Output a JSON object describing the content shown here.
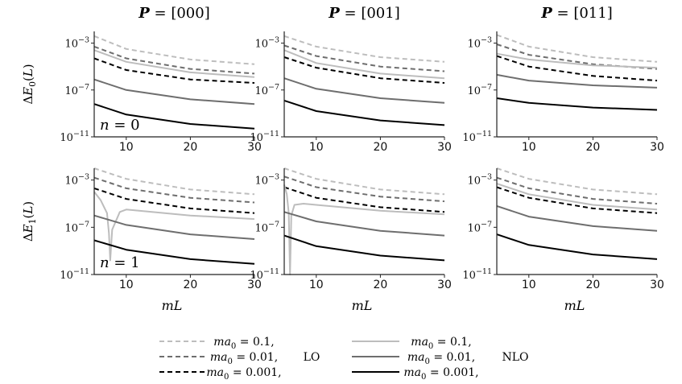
{
  "chart_data": {
    "type": "line",
    "layout": "2x3 grid",
    "xlabel": "mL",
    "xlim": [
      5,
      30
    ],
    "xticks": [
      10,
      20,
      30
    ],
    "ylim_log10": [
      -11,
      -2
    ],
    "yticks_log10": [
      -11,
      -7,
      -3
    ],
    "ytick_labels": [
      "10^{-11}",
      "10^{-7}",
      "10^{-3}"
    ],
    "columns": [
      {
        "title": "P = [000]"
      },
      {
        "title": "P = [001]"
      },
      {
        "title": "P = [011]"
      }
    ],
    "rows": [
      {
        "ylabel": "ΔE_0(L)",
        "annotation": "n = 0"
      },
      {
        "ylabel": "ΔE_1(L)",
        "annotation": "n = 1"
      }
    ],
    "series_styles": {
      "LO_0.1": {
        "color": "#bdbdbd",
        "dash": true
      },
      "LO_0.01": {
        "color": "#6e6e6e",
        "dash": true
      },
      "LO_0.001": {
        "color": "#000000",
        "dash": true
      },
      "NLO_0.1": {
        "color": "#bdbdbd",
        "dash": false
      },
      "NLO_0.01": {
        "color": "#6e6e6e",
        "dash": false
      },
      "NLO_0.001": {
        "color": "#000000",
        "dash": false
      }
    },
    "panels": [
      {
        "row": 0,
        "col": 0,
        "series": [
          {
            "key": "LO_0.1",
            "x": [
              5,
              10,
              20,
              30
            ],
            "log10y": [
              -2.4,
              -3.5,
              -4.4,
              -4.8
            ]
          },
          {
            "key": "LO_0.01",
            "x": [
              5,
              10,
              20,
              30
            ],
            "log10y": [
              -3.3,
              -4.3,
              -5.2,
              -5.6
            ]
          },
          {
            "key": "LO_0.001",
            "x": [
              5,
              10,
              20,
              30
            ],
            "log10y": [
              -4.3,
              -5.3,
              -6.1,
              -6.4
            ]
          },
          {
            "key": "NLO_0.1",
            "x": [
              5,
              10,
              20,
              30
            ],
            "log10y": [
              -3.6,
              -4.6,
              -5.5,
              -5.9
            ]
          },
          {
            "key": "NLO_0.01",
            "x": [
              5,
              10,
              20,
              30
            ],
            "log10y": [
              -6.1,
              -7.0,
              -7.8,
              -8.2
            ]
          },
          {
            "key": "NLO_0.001",
            "x": [
              5,
              10,
              20,
              30
            ],
            "log10y": [
              -8.2,
              -9.1,
              -9.9,
              -10.3
            ]
          }
        ]
      },
      {
        "row": 0,
        "col": 1,
        "series": [
          {
            "key": "LO_0.1",
            "x": [
              5,
              10,
              20,
              30
            ],
            "log10y": [
              -2.4,
              -3.3,
              -4.2,
              -4.6
            ]
          },
          {
            "key": "LO_0.01",
            "x": [
              5,
              10,
              20,
              30
            ],
            "log10y": [
              -3.2,
              -4.1,
              -5.0,
              -5.4
            ]
          },
          {
            "key": "LO_0.001",
            "x": [
              5,
              10,
              20,
              30
            ],
            "log10y": [
              -4.2,
              -5.1,
              -6.0,
              -6.4
            ]
          },
          {
            "key": "NLO_0.1",
            "x": [
              5,
              10,
              20,
              30
            ],
            "log10y": [
              -3.6,
              -4.7,
              -5.6,
              -6.0
            ]
          },
          {
            "key": "NLO_0.01",
            "x": [
              5,
              10,
              20,
              30
            ],
            "log10y": [
              -6.0,
              -6.9,
              -7.7,
              -8.1
            ]
          },
          {
            "key": "NLO_0.001",
            "x": [
              5,
              10,
              20,
              30
            ],
            "log10y": [
              -7.9,
              -8.8,
              -9.6,
              -10.0
            ]
          }
        ]
      },
      {
        "row": 0,
        "col": 2,
        "series": [
          {
            "key": "LO_0.1",
            "x": [
              5,
              10,
              20,
              30
            ],
            "log10y": [
              -2.3,
              -3.3,
              -4.2,
              -4.6
            ]
          },
          {
            "key": "LO_0.01",
            "x": [
              5,
              10,
              20,
              30
            ],
            "log10y": [
              -3.1,
              -4.0,
              -4.8,
              -5.2
            ]
          },
          {
            "key": "LO_0.001",
            "x": [
              5,
              10,
              20,
              30
            ],
            "log10y": [
              -4.1,
              -5.0,
              -5.8,
              -6.2
            ]
          },
          {
            "key": "NLO_0.1",
            "x": [
              5,
              10,
              20,
              30
            ],
            "log10y": [
              -3.9,
              -4.4,
              -4.9,
              -5.1
            ]
          },
          {
            "key": "NLO_0.01",
            "x": [
              5,
              10,
              20,
              30
            ],
            "log10y": [
              -5.7,
              -6.2,
              -6.6,
              -6.8
            ]
          },
          {
            "key": "NLO_0.001",
            "x": [
              5,
              10,
              20,
              30
            ],
            "log10y": [
              -7.7,
              -8.1,
              -8.5,
              -8.7
            ]
          }
        ]
      },
      {
        "row": 1,
        "col": 0,
        "series": [
          {
            "key": "LO_0.1",
            "x": [
              5,
              10,
              20,
              30
            ],
            "log10y": [
              -2.0,
              -2.9,
              -3.8,
              -4.2
            ]
          },
          {
            "key": "LO_0.01",
            "x": [
              5,
              10,
              20,
              30
            ],
            "log10y": [
              -2.8,
              -3.7,
              -4.5,
              -4.9
            ]
          },
          {
            "key": "LO_0.001",
            "x": [
              5,
              10,
              20,
              30
            ],
            "log10y": [
              -3.7,
              -4.6,
              -5.4,
              -5.8
            ]
          },
          {
            "key": "NLO_0.1",
            "x": [
              5,
              6,
              7,
              7.3,
              7.5,
              7.8,
              9,
              10,
              20,
              30
            ],
            "log10y": [
              -4.0,
              -4.7,
              -5.8,
              -7.5,
              -9.8,
              -7.2,
              -5.7,
              -5.5,
              -6.0,
              -6.3
            ]
          },
          {
            "key": "NLO_0.01",
            "x": [
              5,
              10,
              20,
              30
            ],
            "log10y": [
              -6.0,
              -6.8,
              -7.6,
              -8.0
            ]
          },
          {
            "key": "NLO_0.001",
            "x": [
              5,
              10,
              20,
              30
            ],
            "log10y": [
              -8.1,
              -8.9,
              -9.7,
              -10.1
            ]
          }
        ]
      },
      {
        "row": 1,
        "col": 1,
        "series": [
          {
            "key": "LO_0.1",
            "x": [
              5,
              10,
              20,
              30
            ],
            "log10y": [
              -2.0,
              -2.9,
              -3.8,
              -4.2
            ]
          },
          {
            "key": "LO_0.01",
            "x": [
              5,
              10,
              20,
              30
            ],
            "log10y": [
              -2.7,
              -3.6,
              -4.4,
              -4.8
            ]
          },
          {
            "key": "LO_0.001",
            "x": [
              5,
              10,
              20,
              30
            ],
            "log10y": [
              -3.6,
              -4.5,
              -5.3,
              -5.7
            ]
          },
          {
            "key": "NLO_0.1",
            "x": [
              5,
              5.4,
              5.7,
              5.9,
              6.1,
              6.6,
              8,
              10,
              20,
              30
            ],
            "log10y": [
              -3.4,
              -4.2,
              -5.8,
              -11.0,
              -6.0,
              -5.1,
              -5.0,
              -5.1,
              -5.6,
              -5.9
            ]
          },
          {
            "key": "NLO_0.01",
            "x": [
              5,
              10,
              20,
              30
            ],
            "log10y": [
              -5.7,
              -6.5,
              -7.3,
              -7.7
            ]
          },
          {
            "key": "NLO_0.001",
            "x": [
              5,
              10,
              20,
              30
            ],
            "log10y": [
              -7.7,
              -8.6,
              -9.4,
              -9.8
            ]
          }
        ]
      },
      {
        "row": 1,
        "col": 2,
        "series": [
          {
            "key": "LO_0.1",
            "x": [
              5,
              10,
              20,
              30
            ],
            "log10y": [
              -2.0,
              -2.9,
              -3.8,
              -4.2
            ]
          },
          {
            "key": "LO_0.01",
            "x": [
              5,
              10,
              20,
              30
            ],
            "log10y": [
              -2.8,
              -3.7,
              -4.6,
              -5.0
            ]
          },
          {
            "key": "LO_0.001",
            "x": [
              5,
              10,
              20,
              30
            ],
            "log10y": [
              -3.6,
              -4.5,
              -5.4,
              -5.8
            ]
          },
          {
            "key": "NLO_0.1",
            "x": [
              5,
              10,
              20,
              30
            ],
            "log10y": [
              -3.3,
              -4.2,
              -5.1,
              -5.5
            ]
          },
          {
            "key": "NLO_0.01",
            "x": [
              5,
              10,
              20,
              30
            ],
            "log10y": [
              -5.2,
              -6.1,
              -6.9,
              -7.3
            ]
          },
          {
            "key": "NLO_0.001",
            "x": [
              5,
              10,
              20,
              30
            ],
            "log10y": [
              -7.6,
              -8.5,
              -9.3,
              -9.7
            ]
          }
        ]
      }
    ],
    "legend": {
      "entries": [
        {
          "key": "LO_0.1",
          "label": "ma_0 = 0.1,"
        },
        {
          "key": "LO_0.01",
          "label": "ma_0 = 0.01,"
        },
        {
          "key": "LO_0.001",
          "label": "ma_0 = 0.001,"
        },
        {
          "key": "NLO_0.1",
          "label": "ma_0 = 0.1,"
        },
        {
          "key": "NLO_0.01",
          "label": "ma_0 = 0.01,"
        },
        {
          "key": "NLO_0.001",
          "label": "ma_0 = 0.001,"
        }
      ],
      "group_labels": {
        "LO": "LO",
        "NLO": "NLO"
      },
      "placement": "bottom-center"
    }
  }
}
